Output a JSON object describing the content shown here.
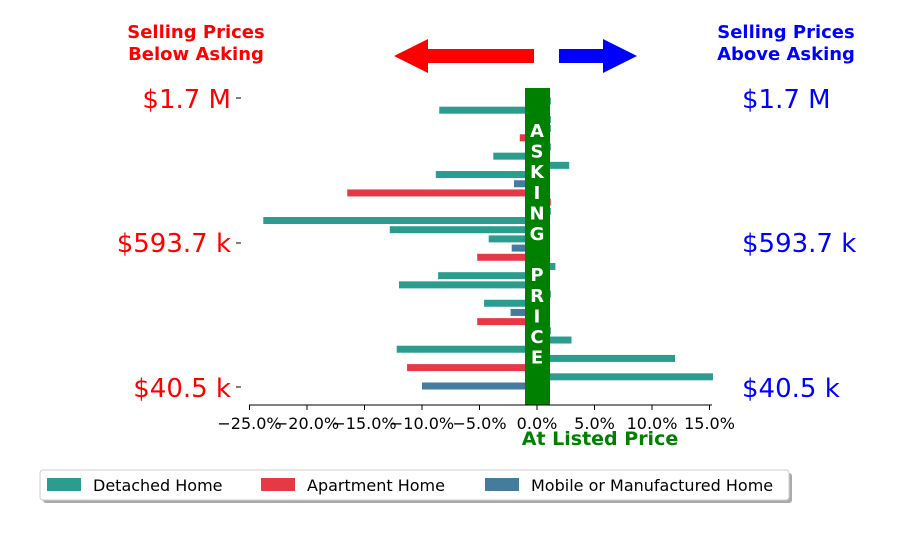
{
  "header": {
    "left_line1": "Selling Prices",
    "left_line2": "Below Asking",
    "right_line1": "Selling Prices",
    "right_line2": "Above Asking",
    "left_color": "#ff0000",
    "right_color": "#0000ff",
    "left_arrow_icon": "arrow-left-icon",
    "right_arrow_icon": "arrow-right-icon"
  },
  "y_labels": {
    "left": [
      "$1.7 M",
      "$593.7 k",
      "$40.5 k"
    ],
    "right": [
      "$1.7 M",
      "$593.7 k",
      "$40.5 k"
    ]
  },
  "band": {
    "letters": [
      "A",
      "S",
      "K",
      "I",
      "N",
      "G",
      "",
      "P",
      "R",
      "I",
      "C",
      "E"
    ],
    "color": "#008000"
  },
  "colors": {
    "detached": "#2a9d8f",
    "apartment": "#e63946",
    "mobile": "#457b9d"
  },
  "chart_data": {
    "type": "bar",
    "orientation": "horizontal",
    "xlabel": "At Listed Price",
    "xlim": [
      -25,
      17
    ],
    "xticks": [
      "−25.0%",
      "−20.0%",
      "−15.0%",
      "−10.0%",
      "−5.0%",
      "0.0%",
      "5.0%",
      "10.0%",
      "15.0%"
    ],
    "xtick_values": [
      -25,
      -20,
      -15,
      -10,
      -5,
      0,
      5,
      10,
      15
    ],
    "ylabels_left": [
      "$1.7 M",
      "$593.7 k",
      "$40.5 k"
    ],
    "ylabels_right": [
      "$1.7 M",
      "$593.7 k",
      "$40.5 k"
    ],
    "series": [
      {
        "name": "Detached Home",
        "color": "#2a9d8f"
      },
      {
        "name": "Apartment Home",
        "color": "#e63946"
      },
      {
        "name": "Mobile or Manufactured Home",
        "color": "#457b9d"
      }
    ],
    "bars": [
      {
        "series": "Detached Home",
        "value": 1.2
      },
      {
        "series": "Detached Home",
        "value": -8.5
      },
      {
        "series": "Detached Home",
        "value": 1.2
      },
      {
        "series": "Detached Home",
        "value": 1.2
      },
      {
        "series": "Apartment Home",
        "value": -1.5
      },
      {
        "series": "Detached Home",
        "value": 1.2
      },
      {
        "series": "Detached Home",
        "value": -3.8
      },
      {
        "series": "Detached Home",
        "value": 2.8
      },
      {
        "series": "Detached Home",
        "value": -8.8
      },
      {
        "series": "Mobile or Manufactured Home",
        "value": -2.0
      },
      {
        "series": "Apartment Home",
        "value": -16.5
      },
      {
        "series": "Apartment Home",
        "value": 1.2
      },
      {
        "series": "Detached Home",
        "value": 1.2
      },
      {
        "series": "Detached Home",
        "value": -23.8
      },
      {
        "series": "Detached Home",
        "value": -12.8
      },
      {
        "series": "Detached Home",
        "value": -4.2
      },
      {
        "series": "Mobile or Manufactured Home",
        "value": -2.2
      },
      {
        "series": "Apartment Home",
        "value": -5.2
      },
      {
        "series": "Detached Home",
        "value": 1.6
      },
      {
        "series": "Detached Home",
        "value": -8.6
      },
      {
        "series": "Detached Home",
        "value": -12.0
      },
      {
        "series": "Detached Home",
        "value": 1.2
      },
      {
        "series": "Detached Home",
        "value": -4.6
      },
      {
        "series": "Mobile or Manufactured Home",
        "value": -2.3
      },
      {
        "series": "Apartment Home",
        "value": -5.2
      },
      {
        "series": "Detached Home",
        "value": 1.2
      },
      {
        "series": "Detached Home",
        "value": 3.0
      },
      {
        "series": "Detached Home",
        "value": -12.2
      },
      {
        "series": "Detached Home",
        "value": 12.0
      },
      {
        "series": "Apartment Home",
        "value": -11.3
      },
      {
        "series": "Detached Home",
        "value": 15.3
      },
      {
        "series": "Mobile or Manufactured Home",
        "value": -10.0
      }
    ],
    "legend": {
      "placement": "bottom-left",
      "columns": 3
    },
    "grid": false
  }
}
